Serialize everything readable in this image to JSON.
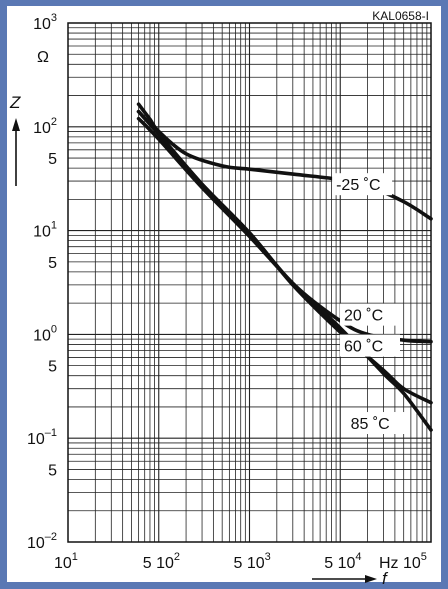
{
  "chart_data": {
    "type": "line",
    "title": "",
    "figure_id": "KAL0658-I",
    "xlabel": "f",
    "xunit": "Hz",
    "ylabel": "Z",
    "yunit": "Ω",
    "x_scale": "log",
    "y_scale": "log",
    "xlim": [
      10,
      100000
    ],
    "ylim": [
      0.01,
      1000
    ],
    "grid": true,
    "x_tick_labels": [
      {
        "value": 10,
        "mant": "10",
        "exp": "1"
      },
      {
        "value": 100,
        "mant": "5 10",
        "exp": "2"
      },
      {
        "value": 1000,
        "mant": "5 10",
        "exp": "3"
      },
      {
        "value": 10000,
        "mant": "5 10",
        "exp": "4"
      },
      {
        "value": 100000,
        "mant": "Hz 10",
        "exp": "5"
      }
    ],
    "y_tick_labels": [
      {
        "value": 1000,
        "mant": "10",
        "exp": "3"
      },
      {
        "value": 100,
        "mant": "10",
        "exp": "2"
      },
      {
        "value": 50,
        "mant": "5",
        "exp": ""
      },
      {
        "value": 10,
        "mant": "10",
        "exp": "1"
      },
      {
        "value": 5,
        "mant": "5",
        "exp": ""
      },
      {
        "value": 1,
        "mant": "10",
        "exp": "0"
      },
      {
        "value": 0.5,
        "mant": "5",
        "exp": ""
      },
      {
        "value": 0.1,
        "mant": "10",
        "exp": "–1"
      },
      {
        "value": 0.05,
        "mant": "5",
        "exp": ""
      },
      {
        "value": 0.01,
        "mant": "10",
        "exp": "–2"
      }
    ],
    "series": [
      {
        "name": "-25 ˚C",
        "points": [
          [
            60,
            165
          ],
          [
            80,
            118
          ],
          [
            100,
            90
          ],
          [
            200,
            55
          ],
          [
            500,
            42
          ],
          [
            1000,
            39
          ],
          [
            3000,
            35
          ],
          [
            10000,
            31
          ],
          [
            20000,
            27
          ],
          [
            50000,
            19
          ],
          [
            100000,
            13
          ]
        ]
      },
      {
        "name": "20 ˚C",
        "points": [
          [
            60,
            140
          ],
          [
            100,
            85
          ],
          [
            300,
            28
          ],
          [
            1000,
            9.5
          ],
          [
            3000,
            3.1
          ],
          [
            10000,
            1.35
          ],
          [
            20000,
            1.0
          ],
          [
            50000,
            0.88
          ],
          [
            100000,
            0.85
          ]
        ]
      },
      {
        "name": "60 ˚C",
        "points": [
          [
            60,
            140
          ],
          [
            100,
            85
          ],
          [
            300,
            28
          ],
          [
            1000,
            9.5
          ],
          [
            3000,
            3.0
          ],
          [
            10000,
            1.05
          ],
          [
            30000,
            0.45
          ],
          [
            50000,
            0.3
          ],
          [
            100000,
            0.22
          ]
        ]
      },
      {
        "name": "85 ˚C",
        "points": [
          [
            60,
            120
          ],
          [
            100,
            76
          ],
          [
            300,
            26
          ],
          [
            1000,
            8.8
          ],
          [
            3000,
            3.1
          ],
          [
            10000,
            1.15
          ],
          [
            30000,
            0.42
          ],
          [
            50000,
            0.27
          ],
          [
            100000,
            0.12
          ]
        ]
      }
    ],
    "label_values": [
      {
        "series": "-25 ˚C",
        "x": 9000,
        "y": 28
      },
      {
        "series": "20 ˚C",
        "x": 11000,
        "y": 1.55
      },
      {
        "series": "60 ˚C",
        "x": 11000,
        "y": 0.78
      },
      {
        "series": "85 ˚C",
        "x": 13000,
        "y": 0.14
      }
    ]
  }
}
